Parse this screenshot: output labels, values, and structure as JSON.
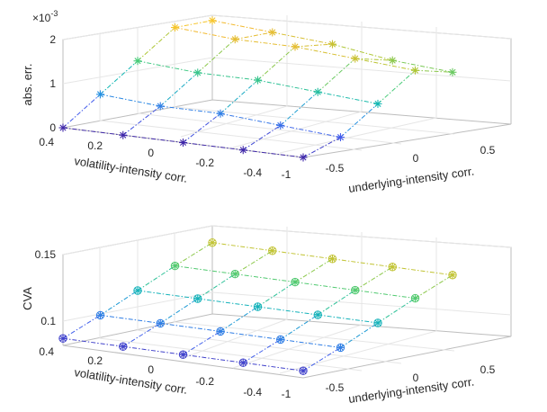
{
  "chart_data": [
    {
      "type": "line",
      "view": "3d-mesh",
      "zlabel": "abs. err.",
      "xlabel": "underlying-intensity corr.",
      "ylabel": "volatility-intensity corr.",
      "exponent_label": "×10",
      "exponent_power": "-3",
      "xticks": [
        "-1",
        "-0.5",
        "0",
        "0.5"
      ],
      "yticks": [
        "0.4",
        "0.2",
        "0",
        "-0.2",
        "-0.4"
      ],
      "zticks": [
        "0",
        "1",
        "2"
      ],
      "xlim": [
        -1,
        1
      ],
      "ylim": [
        -0.4,
        0.4
      ],
      "zlim": [
        0,
        0.002
      ],
      "x": [
        -1,
        -0.5,
        0,
        0.5,
        1
      ],
      "y": [
        0.4,
        0.2,
        0,
        -0.2,
        -0.4
      ],
      "marker": "star",
      "grid": true,
      "colormap": "parula",
      "z": [
        [
          0.0,
          0.0006,
          0.0012,
          0.0018,
          0.0018
        ],
        [
          0.0,
          0.0005,
          0.0011,
          0.0017,
          0.0017
        ],
        [
          0.0,
          0.0005,
          0.0011,
          0.0017,
          0.0016
        ],
        [
          0.0,
          0.0004,
          0.001,
          0.0016,
          0.0014
        ],
        [
          0.0,
          0.0003,
          0.0009,
          0.0015,
          0.0013
        ]
      ]
    },
    {
      "type": "line",
      "view": "3d-mesh",
      "zlabel": "CVA",
      "xlabel": "underlying-intensity corr.",
      "ylabel": "volatility-intensity corr.",
      "xticks": [
        "-1",
        "-0.5",
        "0",
        "0.5"
      ],
      "yticks": [
        "0.4",
        "0.2",
        "0",
        "-0.2",
        "-0.4"
      ],
      "zticks": [
        "0.1",
        "0.15"
      ],
      "xlim": [
        -1,
        1
      ],
      "ylim": [
        -0.4,
        0.4
      ],
      "zlim": [
        0.09,
        0.155
      ],
      "x": [
        -1,
        -0.5,
        0,
        0.5,
        1
      ],
      "y": [
        0.4,
        0.2,
        0,
        -0.2,
        -0.4
      ],
      "marker": "circle-star",
      "grid": true,
      "colormap": "parula",
      "z": [
        [
          0.095,
          0.106,
          0.118,
          0.13,
          0.141
        ],
        [
          0.095,
          0.106,
          0.118,
          0.13,
          0.141
        ],
        [
          0.095,
          0.106,
          0.118,
          0.13,
          0.141
        ],
        [
          0.095,
          0.106,
          0.118,
          0.13,
          0.141
        ],
        [
          0.095,
          0.106,
          0.118,
          0.13,
          0.141
        ]
      ]
    }
  ]
}
